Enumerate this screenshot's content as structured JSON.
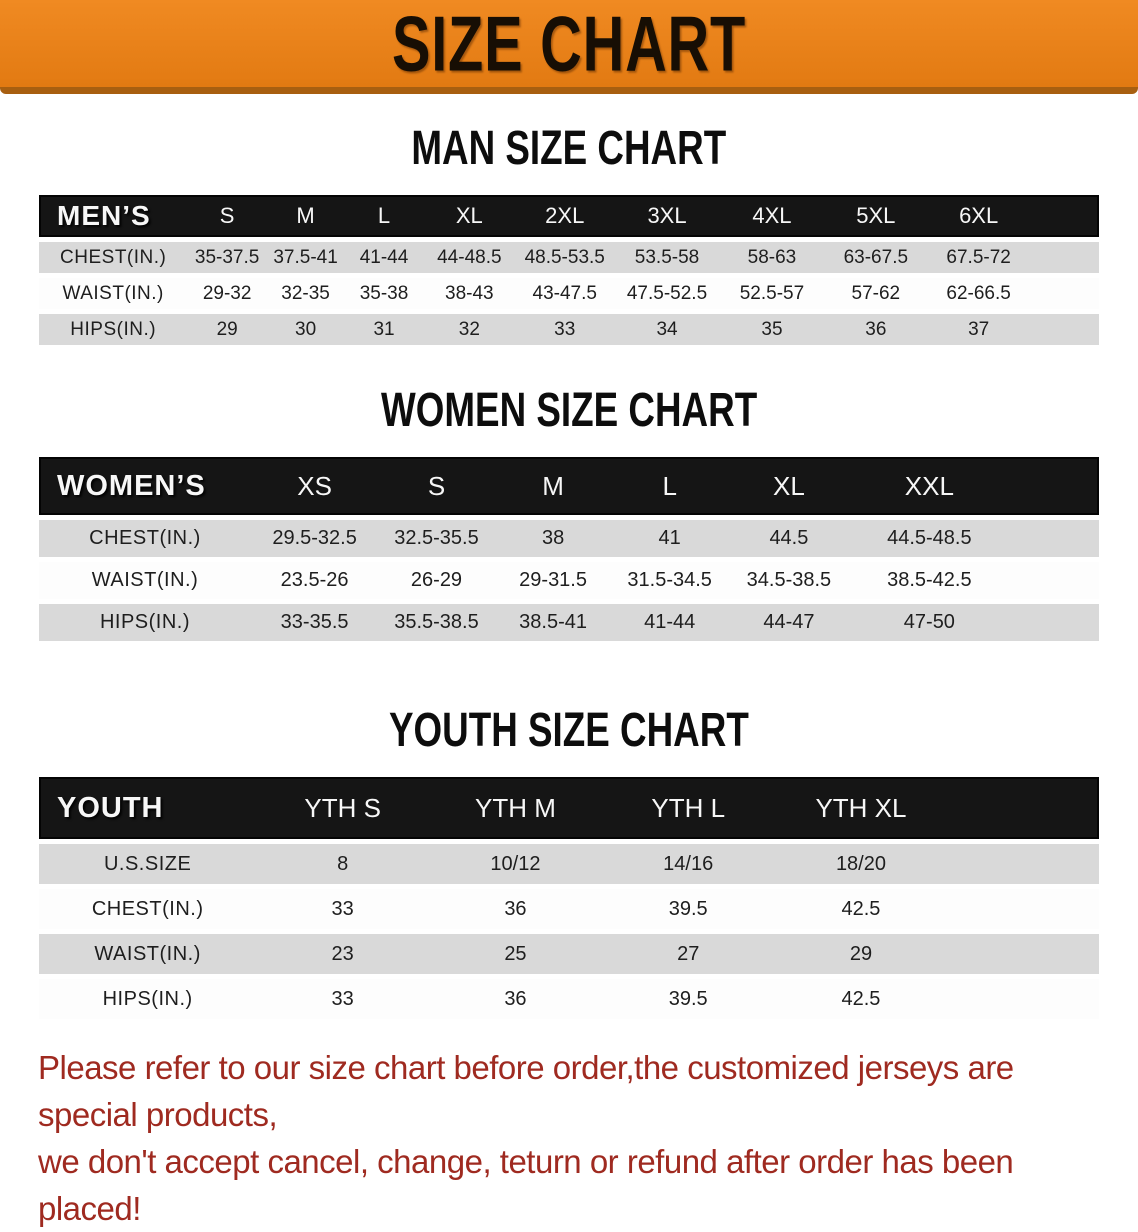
{
  "banner": {
    "title": "SIZE CHART"
  },
  "men": {
    "title": "MAN SIZE CHART",
    "header_label": "MEN’S",
    "sizes": [
      "S",
      "M",
      "L",
      "XL",
      "2XL",
      "3XL",
      "4XL",
      "5XL",
      "6XL"
    ],
    "rows": [
      {
        "label": "CHEST(IN.)",
        "values": [
          "35-37.5",
          "37.5-41",
          "41-44",
          "44-48.5",
          "48.5-53.5",
          "53.5-58",
          "58-63",
          "63-67.5",
          "67.5-72"
        ]
      },
      {
        "label": "WAIST(IN.)",
        "values": [
          "29-32",
          "32-35",
          "35-38",
          "38-43",
          "43-47.5",
          "47.5-52.5",
          "52.5-57",
          "57-62",
          "62-66.5"
        ]
      },
      {
        "label": "HIPS(IN.)",
        "values": [
          "29",
          "30",
          "31",
          "32",
          "33",
          "34",
          "35",
          "36",
          "37"
        ]
      }
    ]
  },
  "women": {
    "title": "WOMEN SIZE CHART",
    "header_label": "WOMEN’S",
    "sizes": [
      "XS",
      "S",
      "M",
      "L",
      "XL",
      "XXL"
    ],
    "rows": [
      {
        "label": "CHEST(IN.)",
        "values": [
          "29.5-32.5",
          "32.5-35.5",
          "38",
          "41",
          "44.5",
          "44.5-48.5"
        ]
      },
      {
        "label": "WAIST(IN.)",
        "values": [
          "23.5-26",
          "26-29",
          "29-31.5",
          "31.5-34.5",
          "34.5-38.5",
          "38.5-42.5"
        ]
      },
      {
        "label": "HIPS(IN.)",
        "values": [
          "33-35.5",
          "35.5-38.5",
          "38.5-41",
          "41-44",
          "44-47",
          "47-50"
        ]
      }
    ]
  },
  "youth": {
    "title": "YOUTH SIZE CHART",
    "header_label": "YOUTH",
    "sizes": [
      "YTH S",
      "YTH M",
      "YTH L",
      "YTH XL"
    ],
    "rows": [
      {
        "label": "U.S.SIZE",
        "values": [
          "8",
          "10/12",
          "14/16",
          "18/20"
        ]
      },
      {
        "label": "CHEST(IN.)",
        "values": [
          "33",
          "36",
          "39.5",
          "42.5"
        ]
      },
      {
        "label": "WAIST(IN.)",
        "values": [
          "23",
          "25",
          "27",
          "29"
        ]
      },
      {
        "label": "HIPS(IN.)",
        "values": [
          "33",
          "36",
          "39.5",
          "42.5"
        ]
      }
    ]
  },
  "disclaimer": {
    "line1": "Please refer to our size chart before order,the customized jerseys are special products,",
    "line2": "we don't accept cancel, change, teturn or refund after order has been placed!"
  },
  "colors": {
    "banner_bg": "#e8821c",
    "banner_edge": "#a85f10",
    "header_bar": "#151515",
    "row_stripe": "#d9d9d9",
    "disclaimer_red": "#9f2a20"
  }
}
